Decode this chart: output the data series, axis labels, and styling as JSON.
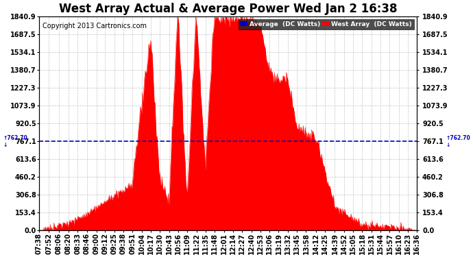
{
  "title": "West Array Actual & Average Power Wed Jan 2 16:38",
  "copyright": "Copyright 2013 Cartronics.com",
  "average_line_value": 762.7,
  "ymax": 1840.9,
  "ymin": 0.0,
  "yticks": [
    0.0,
    153.4,
    306.8,
    460.2,
    613.6,
    767.1,
    920.5,
    1073.9,
    1227.3,
    1380.7,
    1534.1,
    1687.5,
    1840.9
  ],
  "background_color": "#ffffff",
  "plot_bg_color": "#ffffff",
  "grid_color": "#aaaaaa",
  "fill_color": "#ff0000",
  "line_color": "#ff0000",
  "avg_line_color": "#0000bb",
  "legend_avg_bg": "#0000bb",
  "legend_west_bg": "#ff0000",
  "title_fontsize": 12,
  "copyright_fontsize": 7,
  "tick_fontsize": 7,
  "xtick_labels": [
    "07:38",
    "07:52",
    "08:06",
    "08:20",
    "08:33",
    "08:46",
    "09:00",
    "09:12",
    "09:25",
    "09:38",
    "09:51",
    "10:04",
    "10:17",
    "10:30",
    "10:43",
    "10:56",
    "11:09",
    "11:22",
    "11:35",
    "11:48",
    "12:01",
    "12:14",
    "12:27",
    "12:40",
    "12:53",
    "13:06",
    "13:19",
    "13:32",
    "13:45",
    "13:58",
    "14:12",
    "14:25",
    "14:39",
    "14:52",
    "15:05",
    "15:18",
    "15:31",
    "15:44",
    "15:57",
    "16:10",
    "16:23",
    "16:36"
  ],
  "time_start": "07:38",
  "time_end": "16:36"
}
